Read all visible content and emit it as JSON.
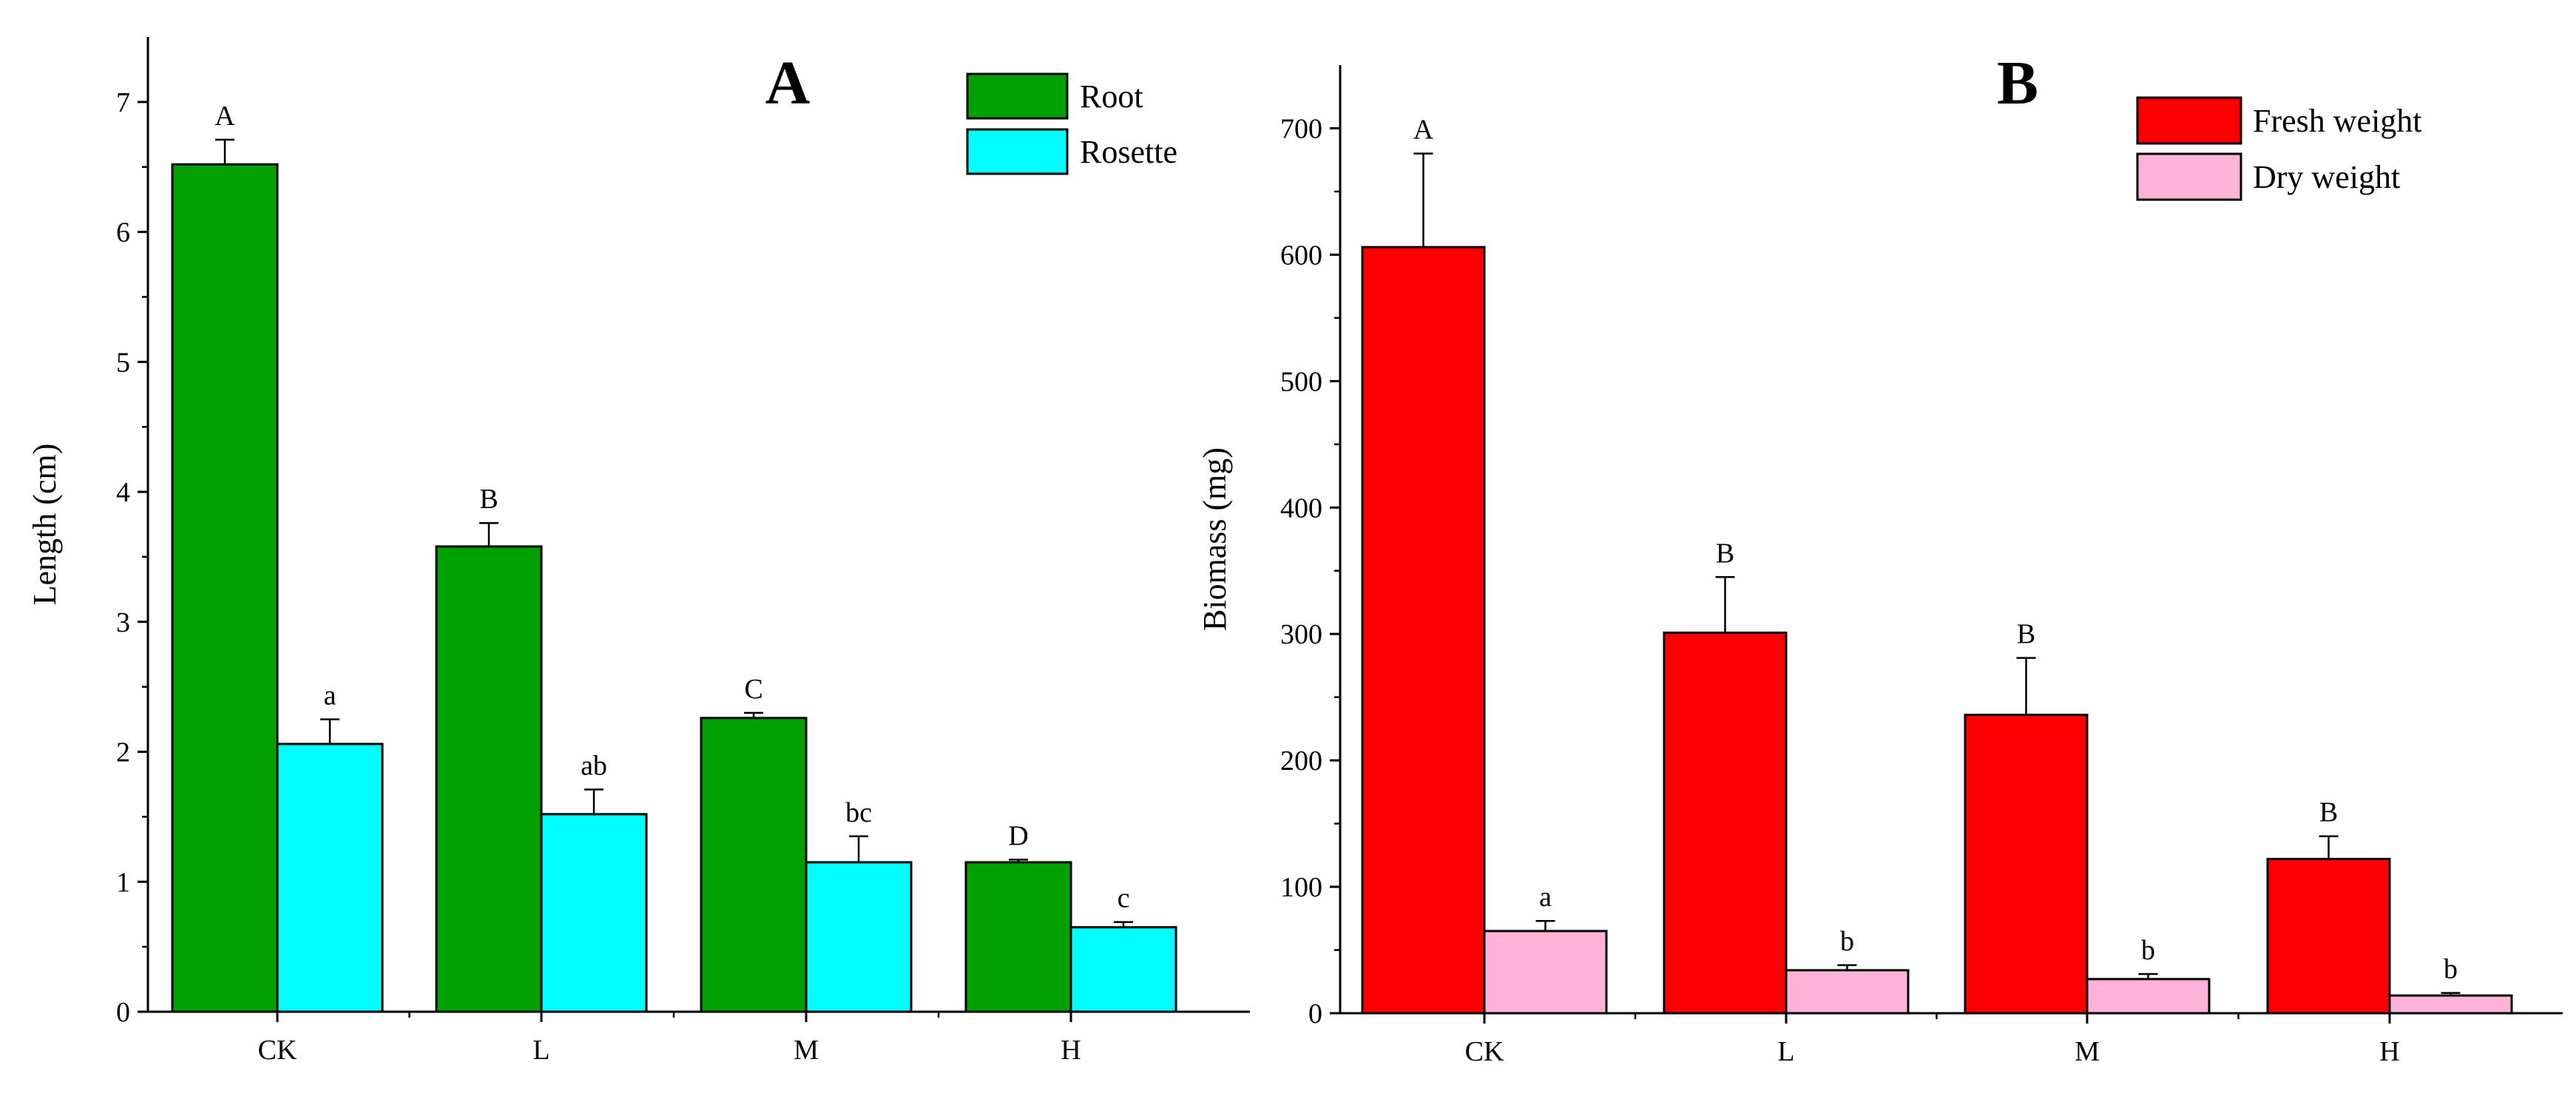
{
  "chart_data": [
    {
      "type": "bar",
      "panel_label": "A",
      "categories": [
        "CK",
        "L",
        "M",
        "H"
      ],
      "ylabel": "Length (cm)",
      "xlabel": "",
      "ylim": [
        0,
        7.5
      ],
      "yticks": [
        0,
        1,
        2,
        3,
        4,
        5,
        6,
        7
      ],
      "legend_position": "top-right",
      "grid": false,
      "series": [
        {
          "name": "Root",
          "color": "#00a000",
          "values": [
            6.52,
            3.58,
            2.26,
            1.15
          ],
          "errors": [
            0.19,
            0.18,
            0.04,
            0.02
          ],
          "labels": [
            "A",
            "B",
            "C",
            "D"
          ]
        },
        {
          "name": "Rosette",
          "color": "#00ffff",
          "values": [
            2.06,
            1.52,
            1.15,
            0.65
          ],
          "errors": [
            0.19,
            0.19,
            0.2,
            0.04
          ],
          "labels": [
            "a",
            "ab",
            "bc",
            "c"
          ]
        }
      ]
    },
    {
      "type": "bar",
      "panel_label": "B",
      "categories": [
        "CK",
        "L",
        "M",
        "H"
      ],
      "ylabel": "Biomass (mg)",
      "xlabel": "",
      "ylim": [
        0,
        750
      ],
      "yticks": [
        0,
        100,
        200,
        300,
        400,
        500,
        600,
        700
      ],
      "legend_position": "top-right",
      "grid": false,
      "series": [
        {
          "name": "Fresh weight",
          "color": "#ff0000",
          "values": [
            606,
            301,
            236,
            122
          ],
          "errors": [
            74,
            44,
            45,
            18
          ],
          "labels": [
            "A",
            "B",
            "B",
            "B"
          ]
        },
        {
          "name": "Dry weight",
          "color": "#ffb3d9",
          "values": [
            65,
            34,
            27,
            14
          ],
          "errors": [
            8,
            4,
            4,
            2
          ],
          "labels": [
            "a",
            "b",
            "b",
            "b"
          ]
        }
      ]
    }
  ]
}
